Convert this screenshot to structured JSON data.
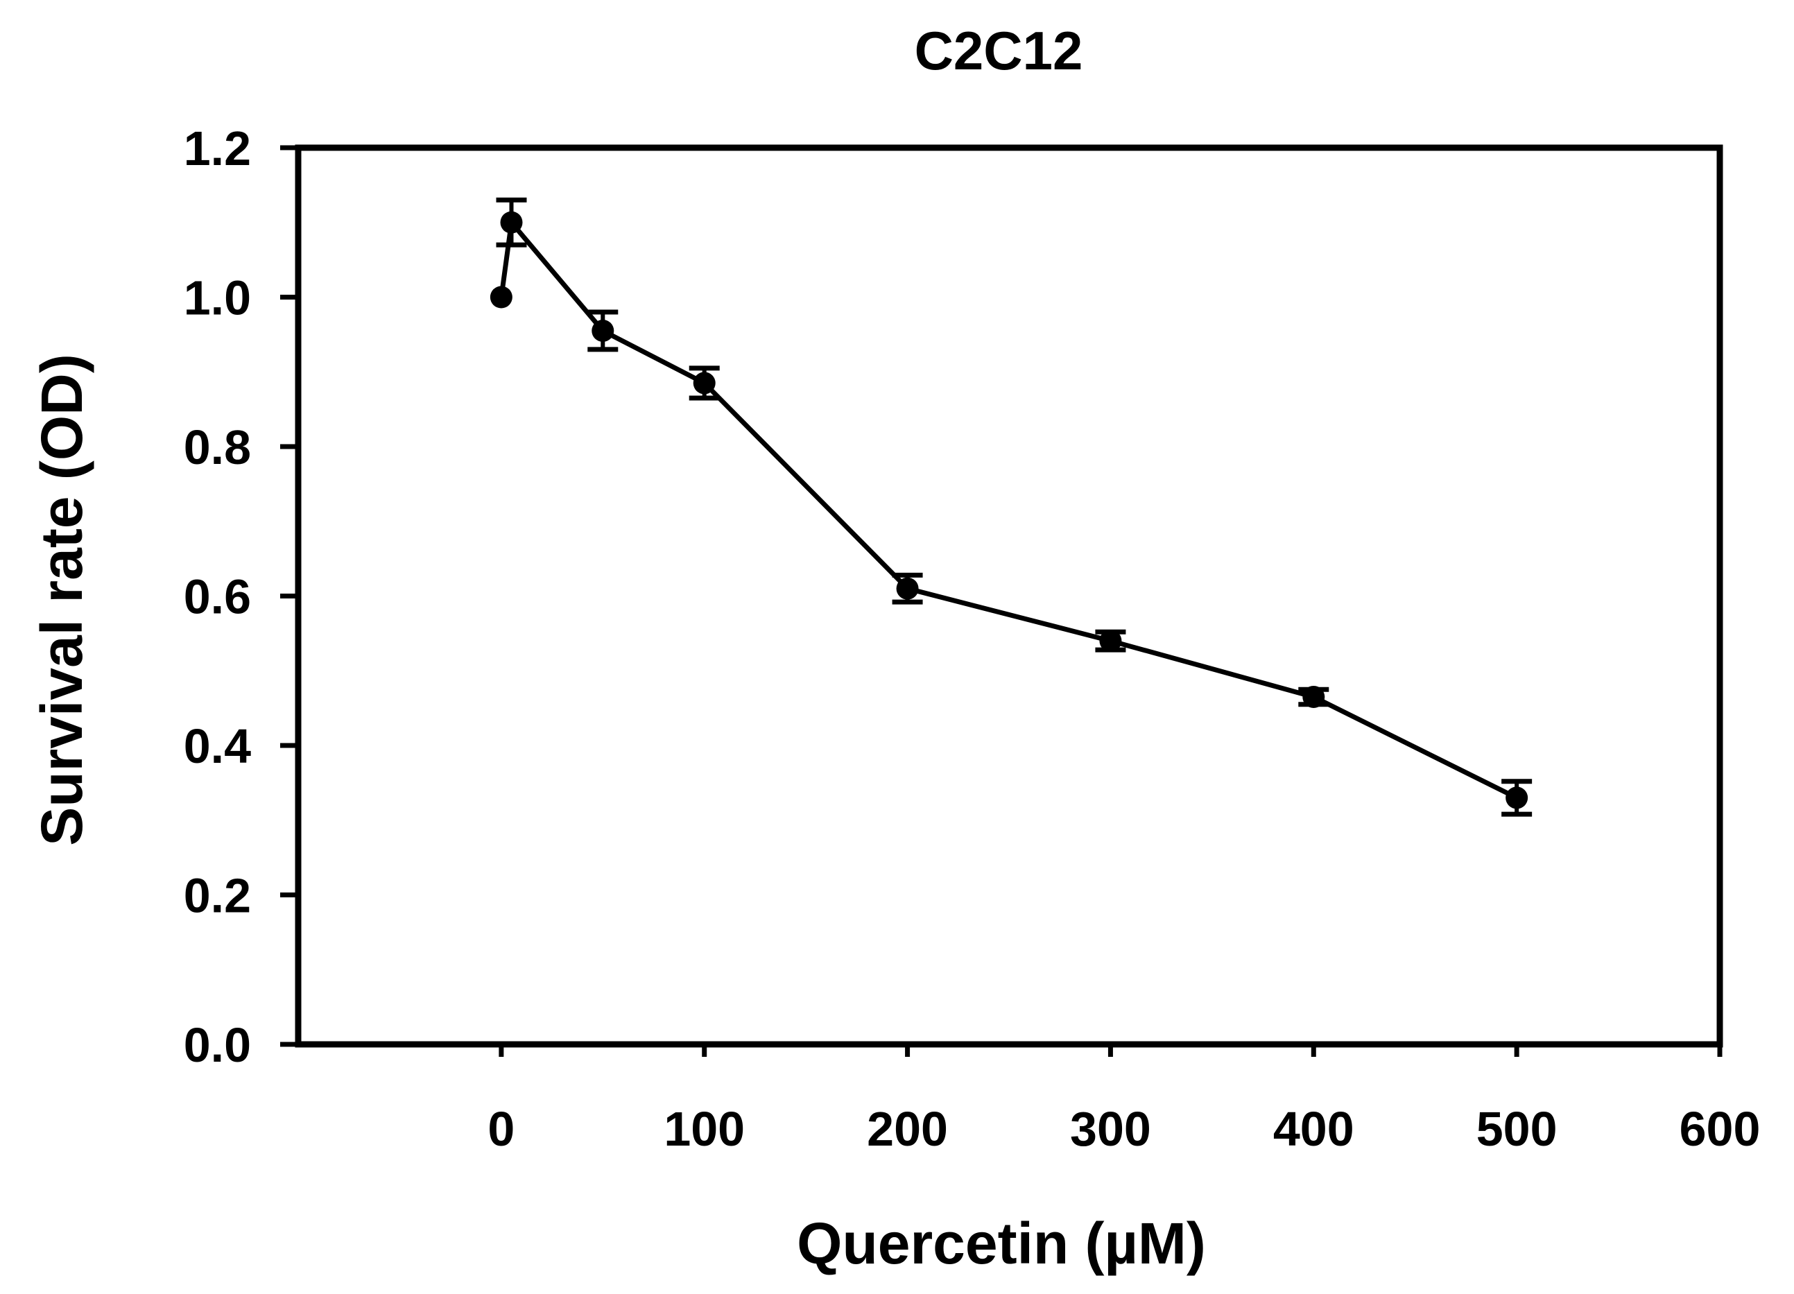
{
  "chart_data": {
    "type": "line",
    "title": "C2C12",
    "xlabel": "Quercetin (µM)",
    "ylabel": "Survival rate (OD)",
    "xlim": [
      -100,
      600
    ],
    "ylim": [
      0.0,
      1.2
    ],
    "xticks": [
      0,
      100,
      200,
      300,
      400,
      500,
      600
    ],
    "xtick_labels": [
      "0",
      "100",
      "200",
      "300",
      "400",
      "500",
      "600"
    ],
    "yticks": [
      0.0,
      0.2,
      0.4,
      0.6,
      0.8,
      1.0,
      1.2
    ],
    "ytick_labels": [
      "0.0",
      "0.2",
      "0.4",
      "0.6",
      "0.8",
      "1.0",
      "1.2"
    ],
    "grid": false,
    "legend": "none",
    "series": [
      {
        "name": "C2C12",
        "x": [
          0,
          5,
          50,
          100,
          200,
          300,
          400,
          500
        ],
        "y": [
          1.0,
          1.1,
          0.955,
          0.885,
          0.61,
          0.54,
          0.465,
          0.33
        ],
        "error": [
          0,
          0.03,
          0.025,
          0.02,
          0.018,
          0.012,
          0.01,
          0.022
        ]
      }
    ],
    "color": "#000000"
  }
}
